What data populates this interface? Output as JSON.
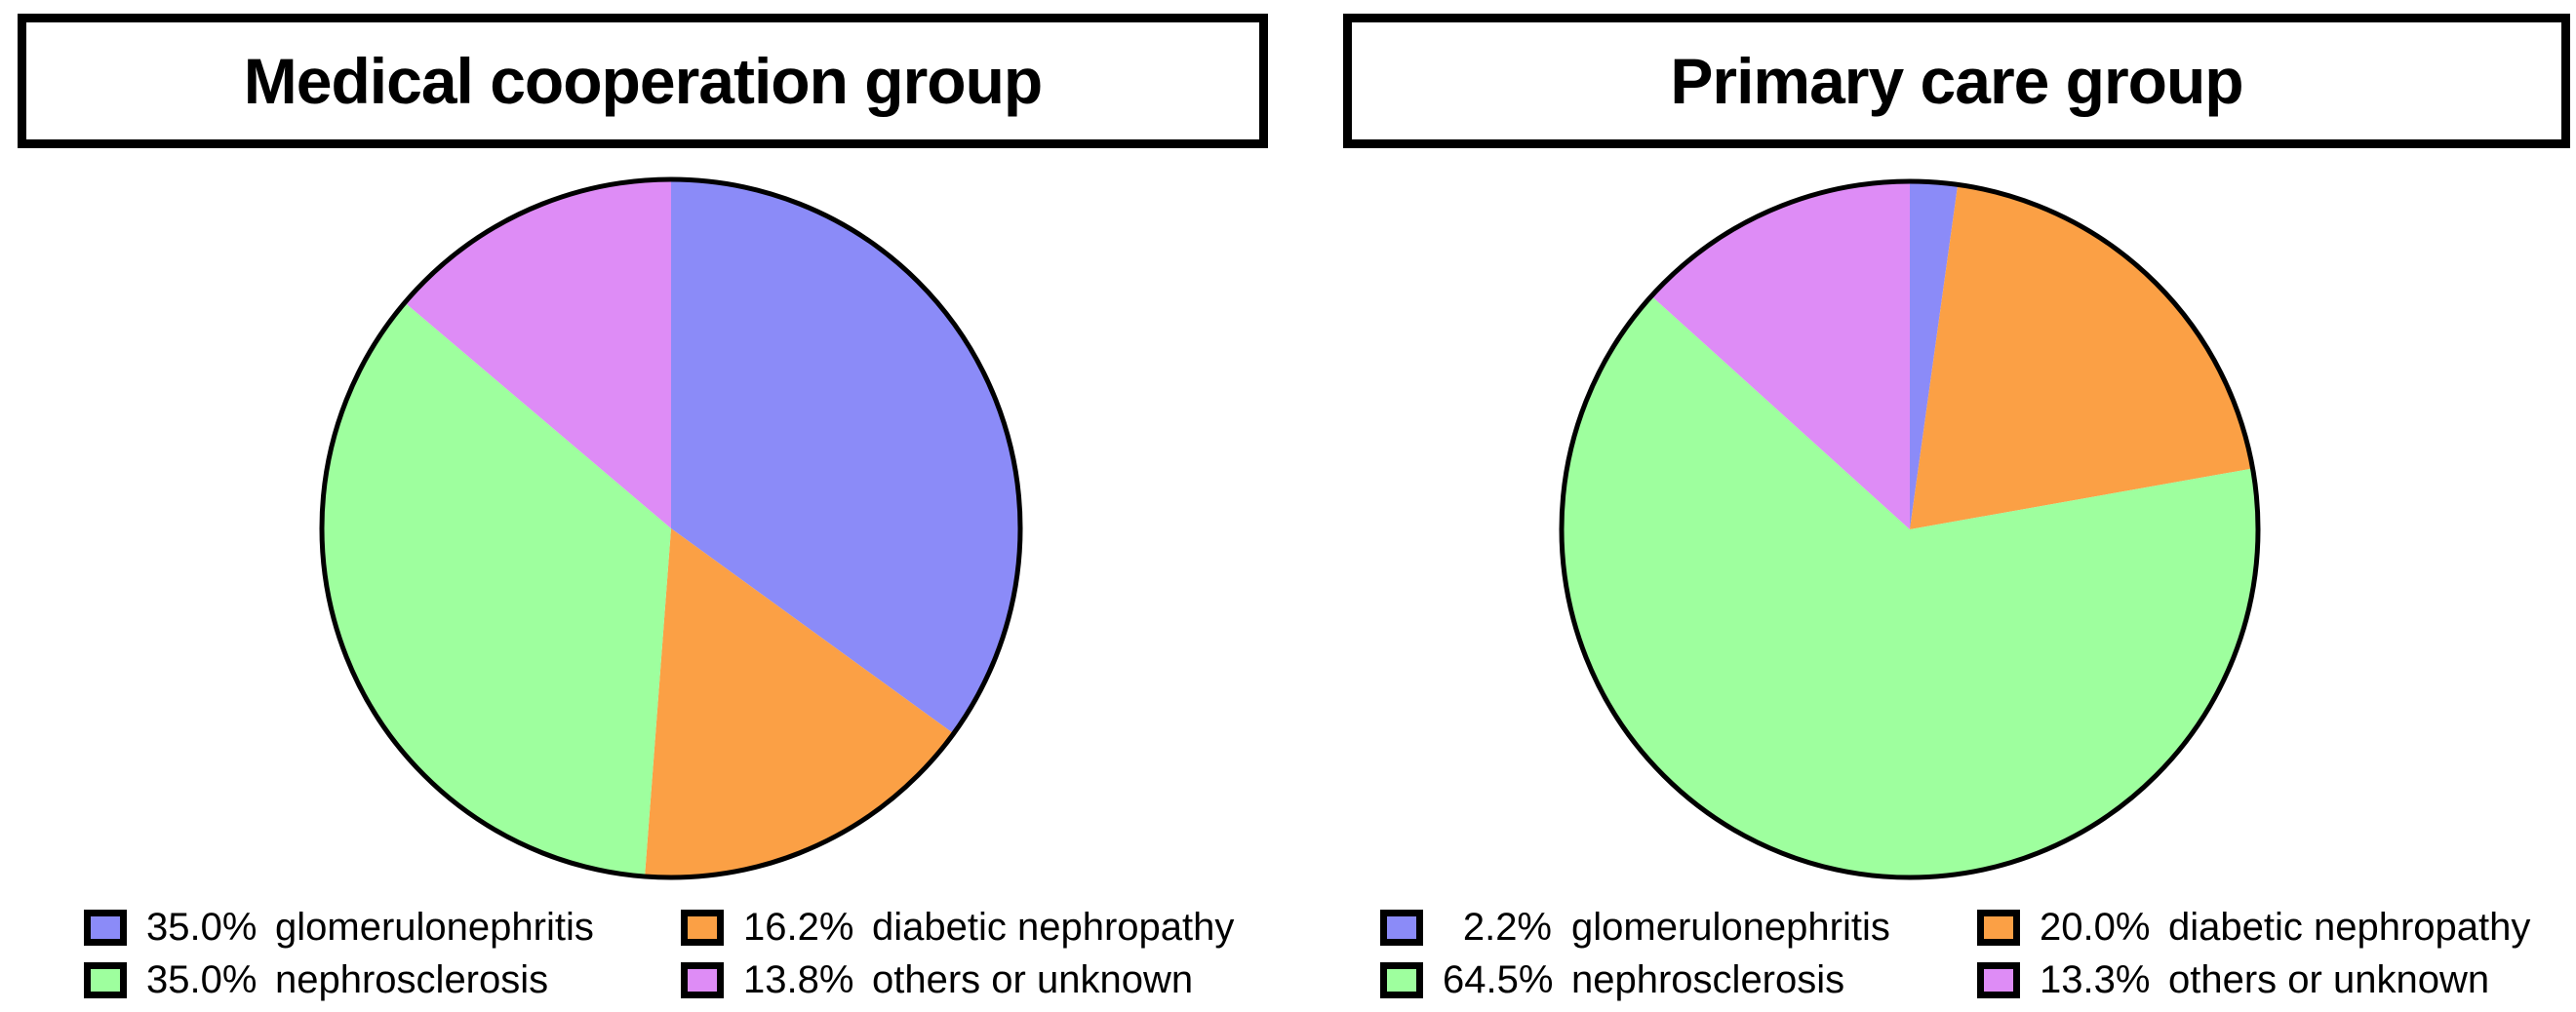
{
  "figure": {
    "background": "#ffffff",
    "outline_color": "#000000",
    "text_color": "#000000"
  },
  "chart_data": [
    {
      "type": "pie",
      "title": "Medical cooperation group",
      "start_angle_deg": 0,
      "direction": "clockwise",
      "slices": [
        {
          "label": "glomerulonephritis",
          "value": 35.0,
          "pct_label": "35.0%",
          "color": "#8B8BF8"
        },
        {
          "label": "diabetic nephropathy",
          "value": 16.2,
          "pct_label": "16.2%",
          "color": "#FBA045"
        },
        {
          "label": "nephrosclerosis",
          "value": 35.0,
          "pct_label": "35.0%",
          "color": "#9EFF9E"
        },
        {
          "label": "others or unknown",
          "value": 13.8,
          "pct_label": "13.8%",
          "color": "#DE8CF6"
        }
      ],
      "legend": {
        "position": "bottom",
        "columns": [
          [
            "glomerulonephritis",
            "nephrosclerosis"
          ],
          [
            "diabetic nephropathy",
            "others or unknown"
          ]
        ]
      }
    },
    {
      "type": "pie",
      "title": "Primary care group",
      "start_angle_deg": 0,
      "direction": "clockwise",
      "slices": [
        {
          "label": "glomerulonephritis",
          "value": 2.2,
          "pct_label": "2.2%",
          "color": "#8B8BF8"
        },
        {
          "label": "diabetic nephropathy",
          "value": 20.0,
          "pct_label": "20.0%",
          "color": "#FBA045"
        },
        {
          "label": "nephrosclerosis",
          "value": 64.5,
          "pct_label": "64.5%",
          "color": "#9EFF9E"
        },
        {
          "label": "others or unknown",
          "value": 13.3,
          "pct_label": "13.3%",
          "color": "#DE8CF6"
        }
      ],
      "legend": {
        "position": "bottom",
        "columns": [
          [
            "glomerulonephritis",
            "nephrosclerosis"
          ],
          [
            "diabetic nephropathy",
            "others or unknown"
          ]
        ]
      }
    }
  ]
}
